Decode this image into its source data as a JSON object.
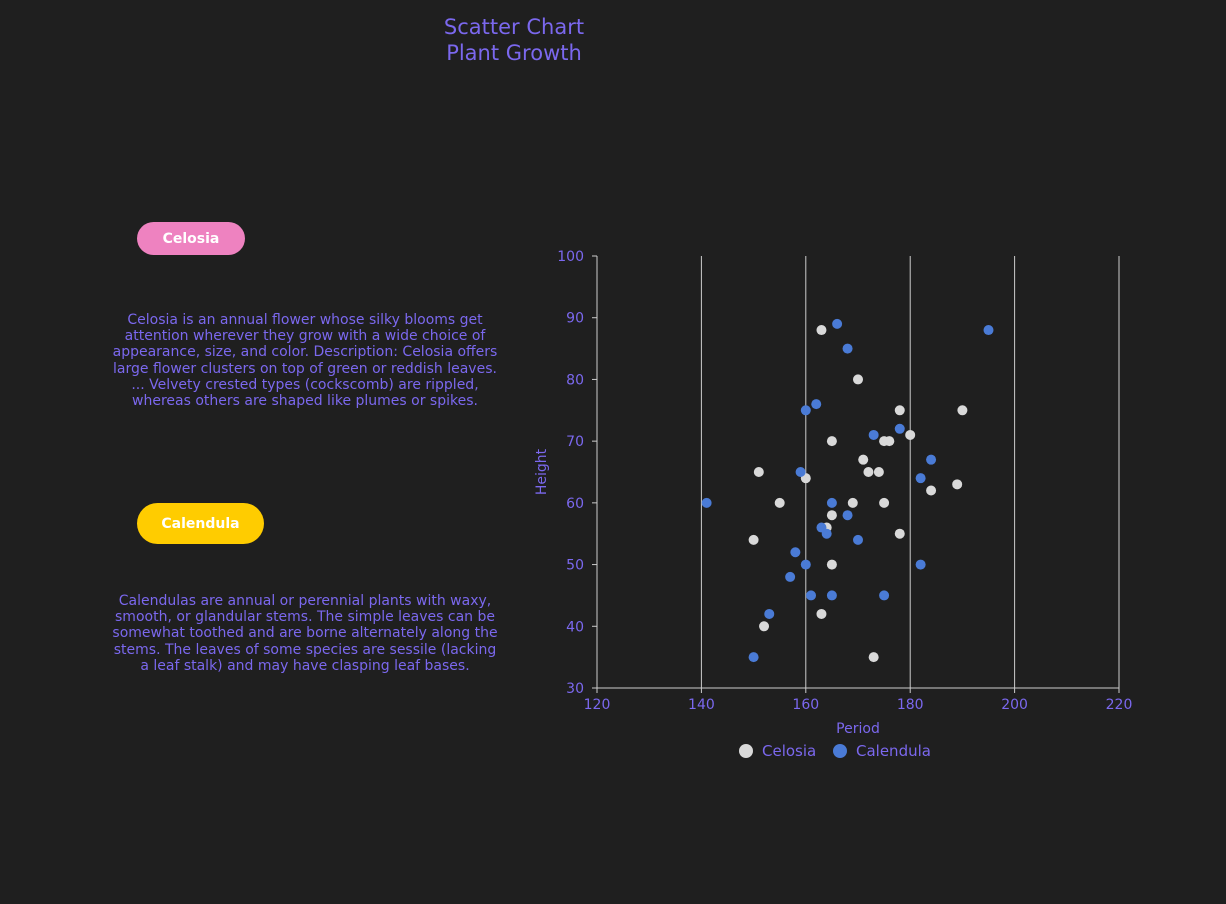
{
  "title_lines": [
    "Scatter Chart",
    "Plant Growth"
  ],
  "cards": [
    {
      "label": "Celosia",
      "color": "#ee82c0",
      "description": "Celosia is an annual flower whose silky blooms get attention wherever they grow with a wide choice of appearance, size, and color. Description: Celosia offers large flower clusters on top of green or reddish leaves. ... Velvety crested types (cockscomb) are rippled, whereas others are shaped like plumes or spikes."
    },
    {
      "label": "Calendula",
      "color": "#ffcc00",
      "description": "Calendulas are annual or perennial plants with waxy, smooth, or glandular stems. The simple leaves can be somewhat toothed and are borne alternately along the stems. The leaves of some species are sessile (lacking a leaf stalk) and may have clasping leaf bases."
    }
  ],
  "colors": {
    "background": "#1f1f1f",
    "text": "#7b68ee",
    "celosia_point": "#d9d9d9",
    "calendula_point": "#4a7bd6",
    "grid": "#cccccc"
  },
  "chart_data": {
    "type": "scatter",
    "title": "",
    "xlabel": "Period",
    "ylabel": "Height",
    "xlim": [
      120,
      220
    ],
    "ylim": [
      30,
      100
    ],
    "xticks": [
      120,
      140,
      160,
      180,
      200,
      220
    ],
    "yticks": [
      30,
      40,
      50,
      60,
      70,
      80,
      90,
      100
    ],
    "grid": "vertical",
    "legend_position": "bottom",
    "series": [
      {
        "name": "Celosia",
        "color": "#d9d9d9",
        "points": [
          [
            163,
            88
          ],
          [
            170,
            80
          ],
          [
            178,
            75
          ],
          [
            190,
            75
          ],
          [
            180,
            71
          ],
          [
            165,
            70
          ],
          [
            175,
            70
          ],
          [
            176,
            70
          ],
          [
            171,
            67
          ],
          [
            151,
            65
          ],
          [
            172,
            65
          ],
          [
            174,
            65
          ],
          [
            160,
            64
          ],
          [
            189,
            63
          ],
          [
            184,
            62
          ],
          [
            155,
            60
          ],
          [
            169,
            60
          ],
          [
            175,
            60
          ],
          [
            165,
            58
          ],
          [
            164,
            56
          ],
          [
            178,
            55
          ],
          [
            150,
            54
          ],
          [
            165,
            50
          ],
          [
            163,
            42
          ],
          [
            152,
            40
          ],
          [
            173,
            35
          ]
        ]
      },
      {
        "name": "Calendula",
        "color": "#4a7bd6",
        "points": [
          [
            166,
            89
          ],
          [
            195,
            88
          ],
          [
            168,
            85
          ],
          [
            162,
            76
          ],
          [
            160,
            75
          ],
          [
            178,
            72
          ],
          [
            173,
            71
          ],
          [
            184,
            67
          ],
          [
            159,
            65
          ],
          [
            182,
            64
          ],
          [
            141,
            60
          ],
          [
            165,
            60
          ],
          [
            168,
            58
          ],
          [
            163,
            56
          ],
          [
            164,
            55
          ],
          [
            170,
            54
          ],
          [
            158,
            52
          ],
          [
            160,
            50
          ],
          [
            182,
            50
          ],
          [
            157,
            48
          ],
          [
            161,
            45
          ],
          [
            165,
            45
          ],
          [
            175,
            45
          ],
          [
            153,
            42
          ],
          [
            150,
            35
          ]
        ]
      }
    ]
  }
}
